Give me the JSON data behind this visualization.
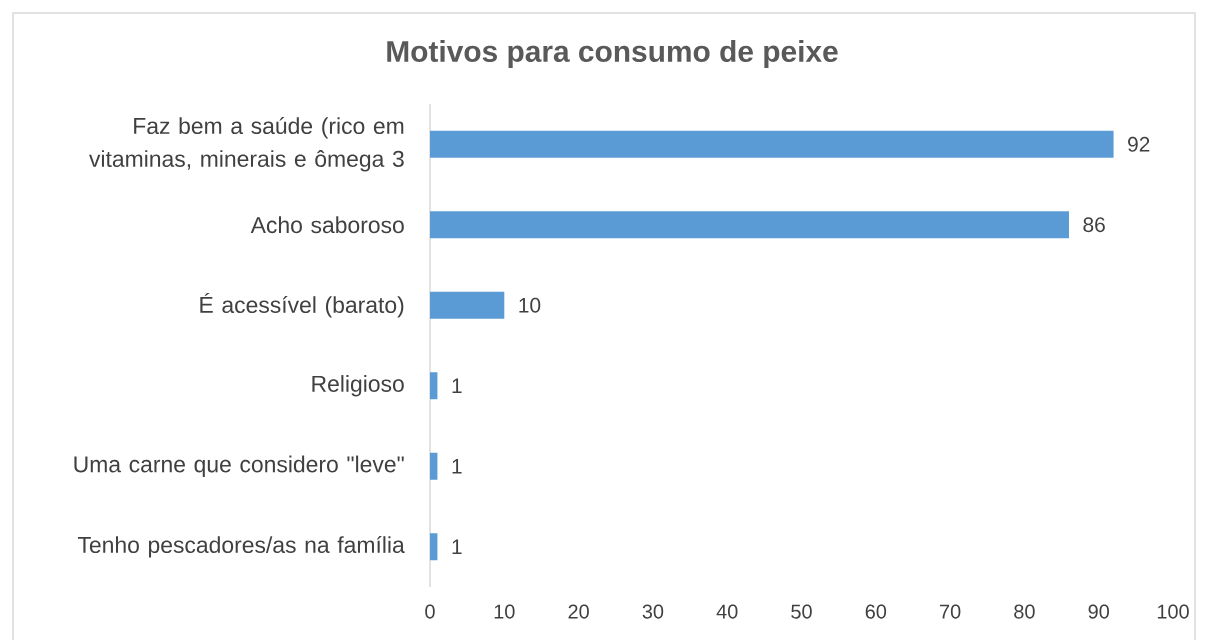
{
  "chart_data": {
    "type": "bar",
    "orientation": "horizontal",
    "title": "Motivos para consumo de peixe",
    "categories": [
      "Faz bem a saúde (rico em vitaminas, minerais e ômega 3",
      "Acho saboroso",
      "É acessível (barato)",
      "Religioso",
      "Uma carne que considero \"leve\"",
      "Tenho pescadores/as na família"
    ],
    "values": [
      92,
      86,
      10,
      1,
      1,
      1
    ],
    "color": "#5b9bd5",
    "xlim": [
      0,
      100
    ],
    "xticks": [
      0,
      10,
      20,
      30,
      40,
      50,
      60,
      70,
      80,
      90,
      100
    ],
    "data_labels": true
  }
}
